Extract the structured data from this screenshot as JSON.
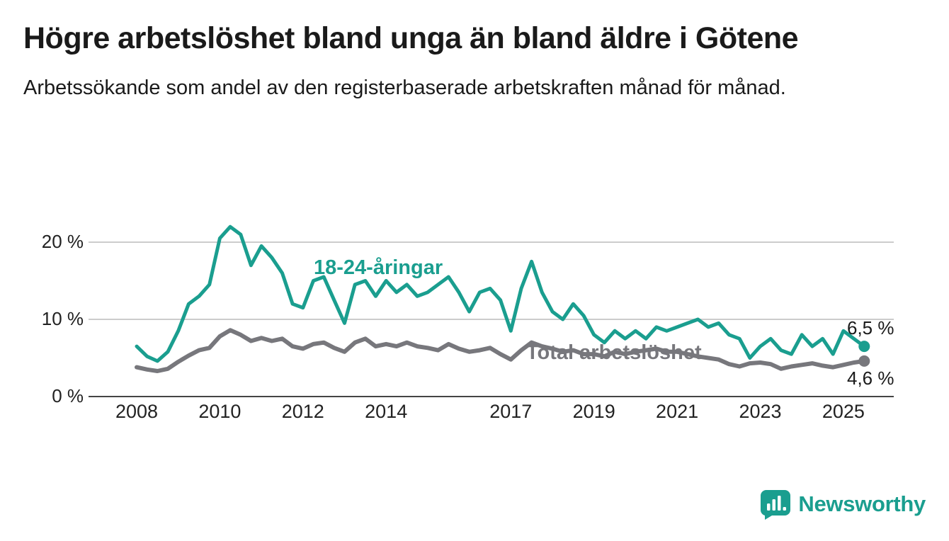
{
  "title": "Högre arbetslöshet bland unga än bland äldre i Götene",
  "subtitle": "Arbetssökande som andel av den registerbaserade arbetskraften månad för månad.",
  "colors": {
    "youth": "#1a9e8f",
    "total": "#77777c",
    "axis": "#444444",
    "grid": "#cccccc",
    "text": "#1a1a1a",
    "brand": "#1a9e8f"
  },
  "branding": {
    "name": "Newsworthy",
    "icon": "bar-chart-bubble-icon"
  },
  "chart_data": {
    "type": "line",
    "title": "Högre arbetslöshet bland unga än bland äldre i Götene",
    "subtitle": "Arbetssökande som andel av den registerbaserade arbetskraften månad för månad.",
    "unit": "%",
    "grid": "horizontal",
    "xlim": [
      2008,
      2025.75
    ],
    "ylim": [
      0,
      23
    ],
    "x_ticks": [
      2008,
      2010,
      2012,
      2014,
      2017,
      2019,
      2021,
      2023,
      2025
    ],
    "y_ticks": [
      {
        "value": 0,
        "label": "0 %"
      },
      {
        "value": 10,
        "label": "10 %"
      },
      {
        "value": 20,
        "label": "20 %"
      }
    ],
    "x": [
      2008,
      2008.25,
      2008.5,
      2008.75,
      2009,
      2009.25,
      2009.5,
      2009.75,
      2010,
      2010.25,
      2010.5,
      2010.75,
      2011,
      2011.25,
      2011.5,
      2011.75,
      2012,
      2012.25,
      2012.5,
      2012.75,
      2013,
      2013.25,
      2013.5,
      2013.75,
      2014,
      2014.25,
      2014.5,
      2014.75,
      2015,
      2015.25,
      2015.5,
      2015.75,
      2016,
      2016.25,
      2016.5,
      2016.75,
      2017,
      2017.25,
      2017.5,
      2017.75,
      2018,
      2018.25,
      2018.5,
      2018.75,
      2019,
      2019.25,
      2019.5,
      2019.75,
      2020,
      2020.25,
      2020.5,
      2020.75,
      2021,
      2021.25,
      2021.5,
      2021.75,
      2022,
      2022.25,
      2022.5,
      2022.75,
      2023,
      2023.25,
      2023.5,
      2023.75,
      2024,
      2024.25,
      2024.5,
      2024.75,
      2025,
      2025.25,
      2025.5
    ],
    "series": [
      {
        "name": "18-24-åringar",
        "color": "#1a9e8f",
        "end_label": "6,5 %",
        "end_value": 6.5,
        "values": [
          6.5,
          5.2,
          4.6,
          5.8,
          8.5,
          12,
          13,
          14.5,
          20.5,
          22,
          21,
          17,
          19.5,
          18,
          16,
          12,
          11.5,
          15,
          15.5,
          12.5,
          9.5,
          14.5,
          15,
          13,
          15,
          13.5,
          14.5,
          13,
          13.5,
          14.5,
          15.5,
          13.5,
          11,
          13.5,
          14,
          12.5,
          8.5,
          14,
          17.5,
          13.5,
          11,
          10,
          12,
          10.5,
          8,
          7,
          8.5,
          7.5,
          8.5,
          7.5,
          9,
          8.5,
          9,
          9.5,
          10,
          9,
          9.5,
          8,
          7.5,
          5,
          6.5,
          7.5,
          6,
          5.5,
          8,
          6.5,
          7.5,
          5.5,
          8.5,
          7.5,
          6.5
        ]
      },
      {
        "name": "Total arbetslöshet",
        "color": "#77777c",
        "end_label": "4,6 %",
        "end_value": 4.6,
        "values": [
          3.8,
          3.5,
          3.3,
          3.6,
          4.5,
          5.3,
          6,
          6.3,
          7.8,
          8.6,
          8,
          7.2,
          7.6,
          7.2,
          7.5,
          6.5,
          6.2,
          6.8,
          7,
          6.3,
          5.8,
          7,
          7.5,
          6.5,
          6.8,
          6.5,
          7,
          6.5,
          6.3,
          6,
          6.8,
          6.2,
          5.8,
          6,
          6.3,
          5.5,
          4.8,
          6,
          7,
          6.5,
          6.2,
          5.8,
          6,
          5.5,
          5.5,
          5.2,
          5.8,
          5.5,
          5.8,
          6,
          6.2,
          5.8,
          5.8,
          5.5,
          5.2,
          5,
          4.8,
          4.2,
          3.9,
          4.3,
          4.4,
          4.2,
          3.6,
          3.9,
          4.1,
          4.3,
          4,
          3.8,
          4.1,
          4.4,
          4.6
        ]
      }
    ]
  }
}
